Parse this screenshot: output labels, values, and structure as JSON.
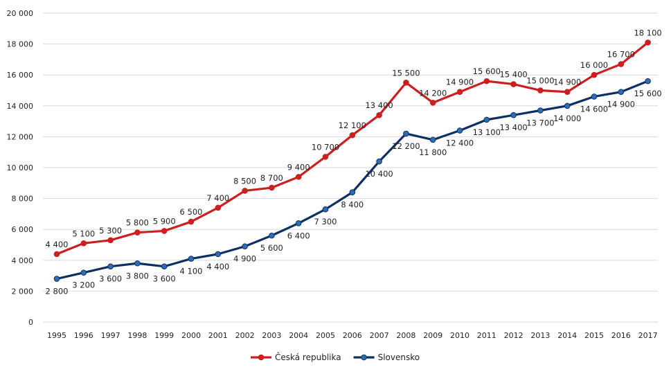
{
  "chart_data": {
    "type": "line",
    "title": "",
    "xlabel": "",
    "ylabel": "",
    "ylim": [
      0,
      20000
    ],
    "y_ticks": [
      {
        "value": 0,
        "label": "0"
      },
      {
        "value": 2000,
        "label": "2 000"
      },
      {
        "value": 4000,
        "label": "4 000"
      },
      {
        "value": 6000,
        "label": "6 000"
      },
      {
        "value": 8000,
        "label": "8 000"
      },
      {
        "value": 10000,
        "label": "10 000"
      },
      {
        "value": 12000,
        "label": "12 000"
      },
      {
        "value": 14000,
        "label": "14 000"
      },
      {
        "value": 16000,
        "label": "16 000"
      },
      {
        "value": 18000,
        "label": "18 000"
      },
      {
        "value": 20000,
        "label": "20 000"
      }
    ],
    "grid": true,
    "legend_position": "bottom",
    "categories": [
      "1995",
      "1996",
      "1997",
      "1998",
      "1999",
      "2000",
      "2001",
      "2002",
      "2003",
      "2004",
      "2005",
      "2006",
      "2007",
      "2008",
      "2009",
      "2010",
      "2011",
      "2012",
      "2013",
      "2014",
      "2015",
      "2016",
      "2017"
    ],
    "series": [
      {
        "name": "Česká republika",
        "color": "#cc1f1f",
        "label_position": "above",
        "values": [
          4400,
          5100,
          5300,
          5800,
          5900,
          6500,
          7400,
          8500,
          8700,
          9400,
          10700,
          12100,
          13400,
          15500,
          14200,
          14900,
          15600,
          15400,
          15000,
          14900,
          16000,
          16700,
          18100
        ],
        "labels": [
          "4 400",
          "5 100",
          "5 300",
          "5 800",
          "5 900",
          "6 500",
          "7 400",
          "8 500",
          "8 700",
          "9 400",
          "10 700",
          "12 100",
          "13 400",
          "15 500",
          "14 200",
          "14 900",
          "15 600",
          "15 400",
          "15 000",
          "14 900",
          "16 000",
          "16 700",
          "18 100"
        ]
      },
      {
        "name": "Slovensko",
        "color": "#0e2f63",
        "marker_color": "#2e6db4",
        "label_position": "below",
        "values": [
          2800,
          3200,
          3600,
          3800,
          3600,
          4100,
          4400,
          4900,
          5600,
          6400,
          7300,
          8400,
          10400,
          12200,
          11800,
          12400,
          13100,
          13400,
          13700,
          14000,
          14600,
          14900,
          15600
        ],
        "labels": [
          "2 800",
          "3 200",
          "3 600",
          "3 800",
          "3 600",
          "4 100",
          "4 400",
          "4 900",
          "5 600",
          "6 400",
          "7 300",
          "8 400",
          "10 400",
          "12 200",
          "11 800",
          "12 400",
          "13 100",
          "13 400",
          "13 700",
          "14 000",
          "14 600",
          "14 900",
          "15 600"
        ]
      }
    ]
  }
}
